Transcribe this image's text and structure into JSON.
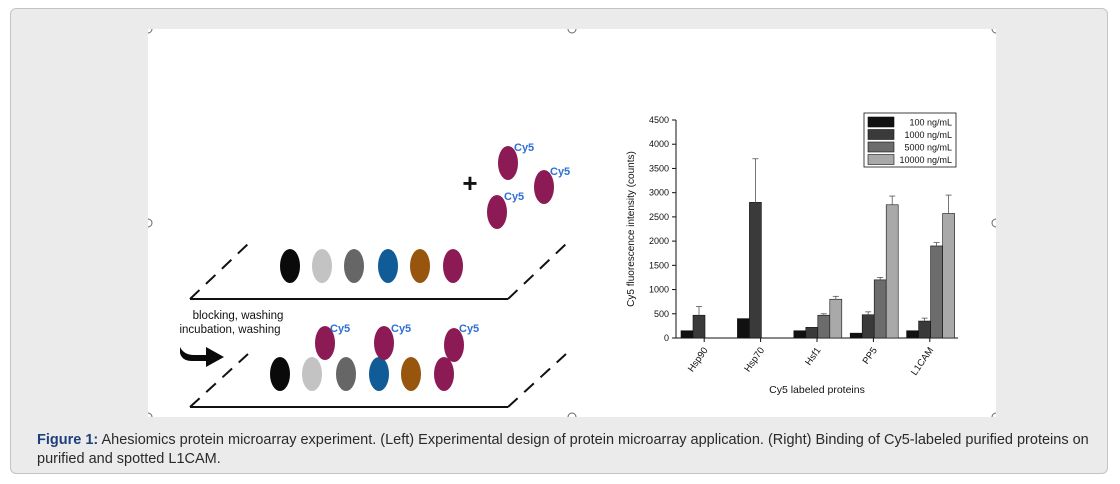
{
  "caption": {
    "label": "Figure 1:",
    "text": " Ahesiomics protein microarray experiment. (Left) Experimental design of protein microarray application. (Right) Binding of Cy5-labeled purified proteins on purified and spotted L1CAM."
  },
  "diagram": {
    "plus_sign": "+",
    "cy5_label": "Cy5",
    "arrow_text_line1": "blocking, washing",
    "arrow_text_line2": "incubation, washing",
    "spot_colors": [
      "#0a0a0a",
      "#c3c3c3",
      "#666666",
      "#115b96",
      "#98550e",
      "#8c1a55"
    ],
    "probe_color": "#8c1a55",
    "cy5_color": "#2f6fd6"
  },
  "chart_data": {
    "type": "bar",
    "categories": [
      "Hsp90",
      "Hsp70",
      "Hsf1",
      "PP5",
      "L1CAM"
    ],
    "series": [
      {
        "name": "100 ng/mL",
        "color": "#111111",
        "values": [
          150,
          400,
          150,
          100,
          150
        ],
        "errors": [
          0,
          0,
          0,
          0,
          0
        ]
      },
      {
        "name": "1000 ng/mL",
        "color": "#3a3a3a",
        "values": [
          470,
          2800,
          220,
          480,
          350
        ],
        "errors": [
          180,
          900,
          0,
          60,
          60
        ]
      },
      {
        "name": "5000 ng/mL",
        "color": "#6c6c6c",
        "values": [
          0,
          0,
          470,
          1200,
          1900
        ],
        "errors": [
          0,
          0,
          30,
          50,
          70
        ]
      },
      {
        "name": "10000 ng/mL",
        "color": "#a9a9a9",
        "values": [
          0,
          0,
          800,
          2750,
          2570
        ],
        "errors": [
          0,
          0,
          60,
          180,
          380
        ]
      }
    ],
    "xlabel": "Cy5 labeled proteins",
    "ylabel": "Cy5 fluorescence intensity (counts)",
    "ylim": [
      0,
      4500
    ],
    "yticks": [
      0,
      500,
      1000,
      1500,
      2000,
      2500,
      3000,
      3500,
      4000,
      4500
    ],
    "legend_position": "top-right"
  }
}
